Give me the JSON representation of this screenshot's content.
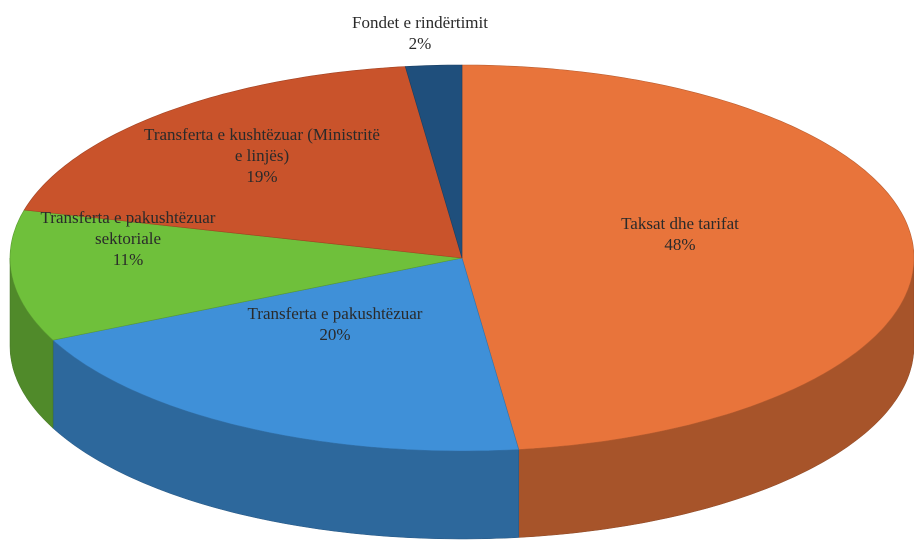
{
  "chart_data": {
    "type": "pie",
    "categories": [
      "Taksat dhe tarifat",
      "Transferta e pakushtëzuar",
      "Transferta e pakushtëzuar sektoriale",
      "Transferta e kushtëzuar (Ministritë e linjës)",
      "Fondet e rindërtimit"
    ],
    "values": [
      48,
      20,
      11,
      19,
      2
    ],
    "value_labels": [
      "48%",
      "20%",
      "11%",
      "19%",
      "2%"
    ],
    "colors": [
      "#e8743b",
      "#3f90d8",
      "#6fc03b",
      "#c9532b",
      "#1f4f7c"
    ]
  }
}
